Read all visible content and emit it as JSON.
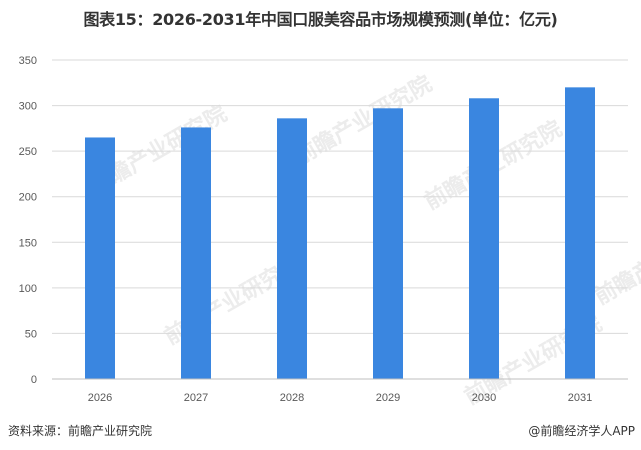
{
  "chart_data": {
    "type": "bar",
    "title": "图表15：2026-2031年中国口服美容品市场规模预测(单位：亿元)",
    "categories": [
      "2026",
      "2027",
      "2028",
      "2029",
      "2030",
      "2031"
    ],
    "values": [
      265,
      276,
      286,
      297,
      308,
      320
    ],
    "ylim": [
      0,
      350
    ],
    "yticks": [
      0,
      50,
      100,
      150,
      200,
      250,
      300,
      350
    ],
    "grid": true,
    "legend": "none",
    "bar_color": "#3a86e0",
    "grid_color": "#d9d9d9",
    "axis_color": "#bfbfbf"
  },
  "watermark": "前瞻产业研究院",
  "footer": {
    "source": "资料来源：前瞻产业研究院",
    "credit": "@前瞻经济学人APP"
  }
}
